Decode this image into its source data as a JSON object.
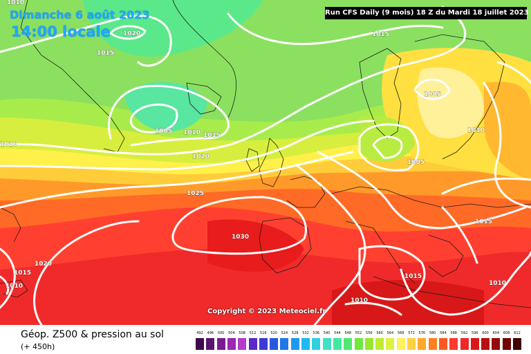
{
  "header": {
    "date": "Dimanche 6 août 2023",
    "time": "14:00 locale",
    "run": "Run CFS Daily (9 mois) 18 Z du Mardi 18 juillet 2023"
  },
  "copyright": "Copyright © 2023 Meteociel.fr",
  "footer": {
    "title": "Géop. Z500 & pression au sol",
    "subtitle": "(+ 450h)"
  },
  "isobars": [
    "1010",
    "1020",
    "1015",
    "1005",
    "1010",
    "1015",
    "1020",
    "1015",
    "1005",
    "1010",
    "1005",
    "1025",
    "1020",
    "1030",
    "1015",
    "1015",
    "1010",
    "1015",
    "1010",
    "1010",
    "1020"
  ],
  "legend": {
    "labels": [
      "492",
      "496",
      "500",
      "504",
      "508",
      "512",
      "516",
      "520",
      "524",
      "528",
      "532",
      "536",
      "540",
      "544",
      "548",
      "552",
      "556",
      "560",
      "564",
      "568",
      "572",
      "576",
      "580",
      "584",
      "588",
      "592",
      "596",
      "600",
      "604",
      "608",
      "612"
    ],
    "colors": [
      "#3c0a4a",
      "#5a1270",
      "#7a1a90",
      "#9a28b0",
      "#b43cc8",
      "#5a28c8",
      "#3a3ad8",
      "#2858e0",
      "#2078e8",
      "#2098f0",
      "#20b8f0",
      "#30d0e0",
      "#40e0c0",
      "#40e8a0",
      "#50e870",
      "#70e840",
      "#98e830",
      "#c0ec30",
      "#e0f040",
      "#fff060",
      "#ffd040",
      "#ffa828",
      "#ff8020",
      "#ff5820",
      "#ff3830",
      "#f02828",
      "#d81818",
      "#b80e10",
      "#980a0a",
      "#700606",
      "#400404"
    ]
  }
}
